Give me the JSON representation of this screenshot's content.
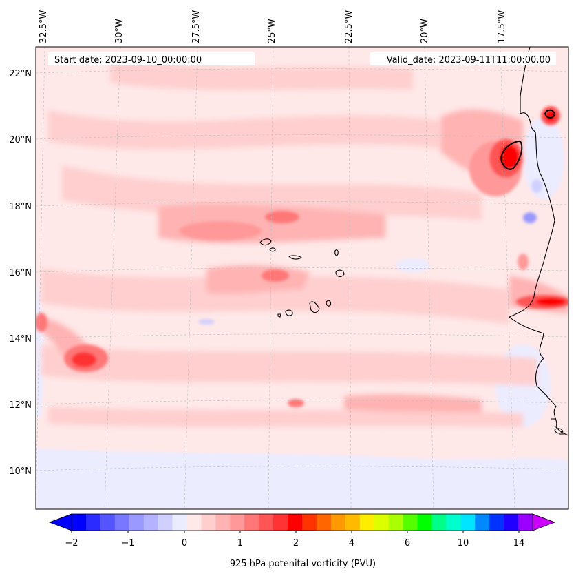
{
  "map": {
    "start_label": "Start date: 2023-09-10_00:00:00",
    "valid_label": "Valid_date: 2023-09-11T11:00:00.00",
    "lon_labels": [
      "32.5°W",
      "30°W",
      "27.5°W",
      "25°W",
      "22.5°W",
      "20°W",
      "17.5°W"
    ],
    "lat_labels": [
      "22°N",
      "20°N",
      "18°N",
      "16°N",
      "14°N",
      "12°N",
      "10°N"
    ],
    "field": "925 hPa potenital vorticity (PVU)"
  },
  "colorbar": {
    "label": "925 hPa potenital vorticity (PVU)",
    "ticks": [
      "−2",
      "−1",
      "0",
      "1",
      "2",
      "4",
      "6",
      "10",
      "14"
    ],
    "colors": [
      "#0000ff",
      "#2b2bff",
      "#5555ff",
      "#7777ff",
      "#9999ff",
      "#b3b3ff",
      "#d0d0ff",
      "#ececff",
      "#ffe8e8",
      "#ffcfcf",
      "#ffb3b3",
      "#ff9999",
      "#ff7777",
      "#ff5555",
      "#ff3333",
      "#ff0000",
      "#ff3300",
      "#ff6600",
      "#ff9900",
      "#ffbb00",
      "#ffee00",
      "#ddff00",
      "#aaff00",
      "#55ff00",
      "#00ff00",
      "#00ff88",
      "#00ffcc",
      "#00e5ff",
      "#0088ff",
      "#0033ff",
      "#2200ff",
      "#9900ff"
    ]
  }
}
